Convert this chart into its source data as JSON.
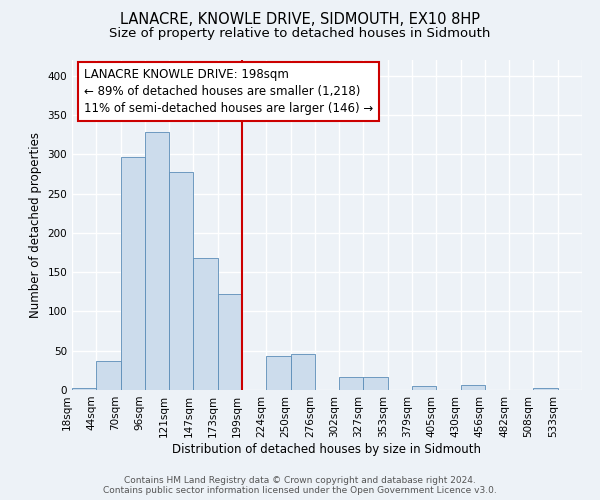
{
  "title": "LANACRE, KNOWLE DRIVE, SIDMOUTH, EX10 8HP",
  "subtitle": "Size of property relative to detached houses in Sidmouth",
  "xlabel": "Distribution of detached houses by size in Sidmouth",
  "ylabel": "Number of detached properties",
  "footer_line1": "Contains HM Land Registry data © Crown copyright and database right 2024.",
  "footer_line2": "Contains public sector information licensed under the Open Government Licence v3.0.",
  "bin_labels": [
    "18sqm",
    "44sqm",
    "70sqm",
    "96sqm",
    "121sqm",
    "147sqm",
    "173sqm",
    "199sqm",
    "224sqm",
    "250sqm",
    "276sqm",
    "302sqm",
    "327sqm",
    "353sqm",
    "379sqm",
    "405sqm",
    "430sqm",
    "456sqm",
    "482sqm",
    "508sqm",
    "533sqm"
  ],
  "bar_values": [
    2,
    37,
    296,
    328,
    278,
    168,
    122,
    0,
    43,
    46,
    0,
    16,
    17,
    0,
    5,
    0,
    6,
    0,
    0,
    2,
    0
  ],
  "bar_color": "#ccdcec",
  "bar_edge_color": "#5b8db8",
  "vline_color": "#cc0000",
  "annotation_line1": "LANACRE KNOWLE DRIVE: 198sqm",
  "annotation_line2": "← 89% of detached houses are smaller (1,218)",
  "annotation_line3": "11% of semi-detached houses are larger (146) →",
  "annotation_box_color": "#ffffff",
  "annotation_box_edge": "#cc0000",
  "ylim": [
    0,
    420
  ],
  "yticks": [
    0,
    50,
    100,
    150,
    200,
    250,
    300,
    350,
    400
  ],
  "bg_color": "#edf2f7",
  "grid_color": "#ffffff",
  "title_fontsize": 10.5,
  "subtitle_fontsize": 9.5,
  "axis_label_fontsize": 8.5,
  "tick_fontsize": 7.5,
  "annotation_fontsize": 8.5,
  "footer_fontsize": 6.5
}
